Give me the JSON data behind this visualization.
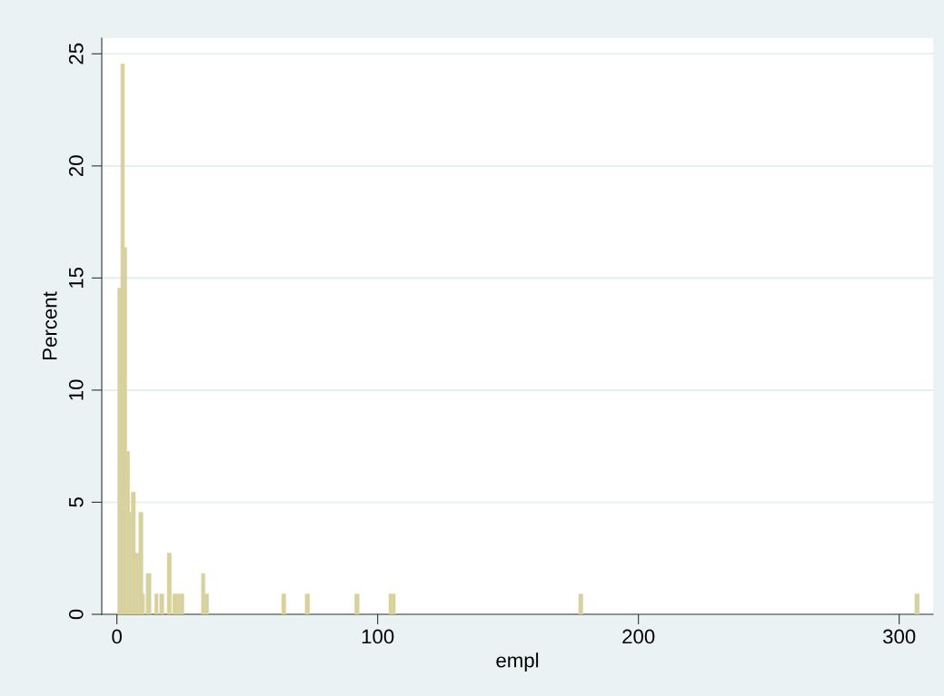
{
  "chart_data": {
    "type": "histogram",
    "xlabel": "empl",
    "ylabel": "Percent",
    "bins": [
      0.3,
      1.5,
      2.9,
      3.8,
      4.9,
      5.5,
      7.1,
      8.4,
      10.0,
      10.6,
      11.2,
      13.1,
      14.5,
      15.8,
      16.4,
      18.0,
      19.3,
      20.9,
      21.4,
      23.2,
      24.4,
      25.7,
      32.4,
      33.8,
      35.2,
      63.2,
      64.8,
      72.2,
      73.9,
      91.2,
      92.9,
      104.3,
      105.5,
      106.8,
      177.1,
      178.7,
      306.0,
      307.7
    ],
    "values": [
      14.55,
      24.55,
      16.36,
      7.27,
      4.55,
      5.45,
      2.73,
      4.55,
      0.91,
      0,
      1.82,
      0,
      0.91,
      0,
      0.91,
      0,
      2.73,
      0,
      0.91,
      0.91,
      0.91,
      0,
      1.82,
      0.91,
      0,
      0.91,
      0,
      0.91,
      0,
      0.91,
      0,
      0.91,
      0.91,
      0,
      0.91,
      0,
      0.91
    ],
    "color": "#d7d29d",
    "xlim": [
      -5.8,
      313
    ],
    "xticks": [
      0,
      100,
      200,
      300
    ],
    "ylim": [
      0,
      25.7
    ],
    "yticks": [
      0,
      5,
      10,
      15,
      20,
      25
    ],
    "grid": "y"
  }
}
